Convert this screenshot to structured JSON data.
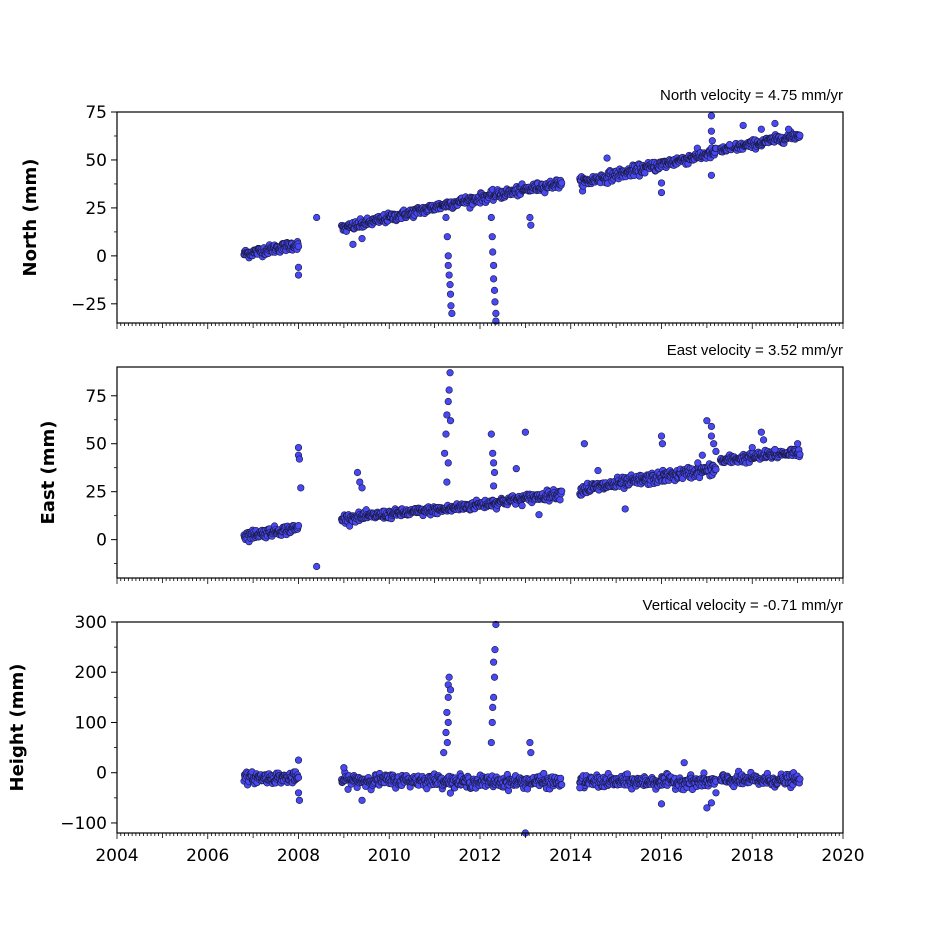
{
  "chart_data": [
    {
      "type": "scatter",
      "title": "North velocity = 4.75 mm/yr",
      "ylabel": "North (mm)",
      "xlim": [
        2004,
        2020
      ],
      "ylim": [
        -35,
        75
      ],
      "yticks": [
        -25,
        0,
        25,
        50,
        75
      ],
      "ytick_labels": [
        "−25",
        "0",
        "25",
        "50",
        "75"
      ],
      "x_minor_per_year": 12,
      "marker_color": "#4848f5",
      "marker_edge": "#1a1a40",
      "segments": [
        {
          "x0": 2006.8,
          "x1": 2008.0,
          "y0": 1,
          "y1": 6,
          "noise": 2.0,
          "n": 110
        },
        {
          "x0": 2008.95,
          "x1": 2011.3,
          "y0": 14,
          "y1": 27,
          "noise": 2.0,
          "n": 200
        },
        {
          "x0": 2011.3,
          "x1": 2013.8,
          "y0": 27,
          "y1": 38,
          "noise": 2.0,
          "n": 210
        },
        {
          "x0": 2014.2,
          "x1": 2017.2,
          "y0": 38,
          "y1": 54,
          "noise": 2.2,
          "n": 250
        },
        {
          "x0": 2017.3,
          "x1": 2019.05,
          "y0": 55,
          "y1": 63,
          "noise": 1.8,
          "n": 150
        }
      ],
      "outliers": [
        [
          2008.0,
          -10
        ],
        [
          2008.0,
          -6
        ],
        [
          2008.4,
          20
        ],
        [
          2009.2,
          6
        ],
        [
          2009.4,
          9
        ],
        [
          2011.25,
          20
        ],
        [
          2011.28,
          10
        ],
        [
          2011.3,
          0
        ],
        [
          2011.3,
          -5
        ],
        [
          2011.32,
          -10
        ],
        [
          2011.34,
          -15
        ],
        [
          2011.35,
          -20
        ],
        [
          2011.36,
          -26
        ],
        [
          2011.38,
          -30
        ],
        [
          2012.25,
          20
        ],
        [
          2012.27,
          10
        ],
        [
          2012.28,
          2
        ],
        [
          2012.3,
          -5
        ],
        [
          2012.3,
          -12
        ],
        [
          2012.32,
          -18
        ],
        [
          2012.33,
          -24
        ],
        [
          2012.35,
          -30
        ],
        [
          2012.35,
          -34
        ],
        [
          2013.1,
          20
        ],
        [
          2013.12,
          16
        ],
        [
          2014.8,
          51
        ],
        [
          2016.0,
          38
        ],
        [
          2016.0,
          33
        ],
        [
          2017.1,
          73
        ],
        [
          2017.1,
          65
        ],
        [
          2017.12,
          60
        ],
        [
          2017.1,
          42
        ],
        [
          2017.5,
          58
        ],
        [
          2017.8,
          68
        ],
        [
          2018.2,
          66
        ],
        [
          2018.5,
          69
        ],
        [
          2018.8,
          66
        ]
      ]
    },
    {
      "type": "scatter",
      "title": "East velocity = 3.52 mm/yr",
      "ylabel": "East (mm)",
      "xlim": [
        2004,
        2020
      ],
      "ylim": [
        -20,
        90
      ],
      "yticks": [
        0,
        25,
        50,
        75
      ],
      "ytick_labels": [
        "0",
        "25",
        "50",
        "75"
      ],
      "x_minor_per_year": 12,
      "marker_color": "#4848f5",
      "marker_edge": "#1a1a40",
      "segments": [
        {
          "x0": 2006.8,
          "x1": 2008.0,
          "y0": 2,
          "y1": 6,
          "noise": 2.0,
          "n": 110
        },
        {
          "x0": 2008.95,
          "x1": 2011.3,
          "y0": 11,
          "y1": 16,
          "noise": 1.8,
          "n": 200
        },
        {
          "x0": 2011.3,
          "x1": 2013.8,
          "y0": 16,
          "y1": 24,
          "noise": 2.0,
          "n": 210
        },
        {
          "x0": 2014.2,
          "x1": 2017.2,
          "y0": 26,
          "y1": 37,
          "noise": 2.5,
          "n": 250
        },
        {
          "x0": 2017.3,
          "x1": 2019.05,
          "y0": 41,
          "y1": 46,
          "noise": 2.0,
          "n": 150
        }
      ],
      "outliers": [
        [
          2008.0,
          48
        ],
        [
          2008.0,
          44
        ],
        [
          2008.02,
          42
        ],
        [
          2008.05,
          27
        ],
        [
          2008.4,
          -14
        ],
        [
          2009.3,
          35
        ],
        [
          2009.35,
          30
        ],
        [
          2009.4,
          27
        ],
        [
          2011.22,
          45
        ],
        [
          2011.25,
          55
        ],
        [
          2011.27,
          65
        ],
        [
          2011.3,
          72
        ],
        [
          2011.32,
          78
        ],
        [
          2011.34,
          87
        ],
        [
          2011.35,
          62
        ],
        [
          2011.3,
          40
        ],
        [
          2011.27,
          30
        ],
        [
          2012.25,
          55
        ],
        [
          2012.28,
          45
        ],
        [
          2012.3,
          40
        ],
        [
          2012.32,
          35
        ],
        [
          2012.3,
          28
        ],
        [
          2012.8,
          37
        ],
        [
          2013.0,
          56
        ],
        [
          2013.3,
          13
        ],
        [
          2014.3,
          50
        ],
        [
          2014.6,
          36
        ],
        [
          2015.2,
          16
        ],
        [
          2016.0,
          54
        ],
        [
          2016.02,
          50
        ],
        [
          2016.8,
          40
        ],
        [
          2016.9,
          44
        ],
        [
          2017.0,
          62
        ],
        [
          2017.1,
          59
        ],
        [
          2017.1,
          54
        ],
        [
          2017.15,
          50
        ],
        [
          2017.2,
          46
        ],
        [
          2018.0,
          48
        ],
        [
          2018.2,
          56
        ],
        [
          2018.25,
          52
        ],
        [
          2018.5,
          47
        ],
        [
          2019.0,
          50
        ]
      ]
    },
    {
      "type": "scatter",
      "title": "Vertical velocity = -0.71 mm/yr",
      "ylabel": "Height (mm)",
      "xlabel": "",
      "xlim": [
        2004,
        2020
      ],
      "ylim": [
        -120,
        300
      ],
      "yticks": [
        -100,
        0,
        100,
        200,
        300
      ],
      "ytick_labels": [
        "−100",
        "0",
        "100",
        "200",
        "300"
      ],
      "xticks": [
        2004,
        2006,
        2008,
        2010,
        2012,
        2014,
        2016,
        2018,
        2020
      ],
      "xtick_labels": [
        "2004",
        "2006",
        "2008",
        "2010",
        "2012",
        "2014",
        "2016",
        "2018",
        "2020"
      ],
      "x_minor_per_year": 12,
      "marker_color": "#4848f5",
      "marker_edge": "#1a1a40",
      "segments": [
        {
          "x0": 2006.8,
          "x1": 2008.0,
          "y0": -10,
          "y1": -10,
          "noise": 9,
          "n": 110
        },
        {
          "x0": 2008.95,
          "x1": 2011.3,
          "y0": -15,
          "y1": -15,
          "noise": 10,
          "n": 200
        },
        {
          "x0": 2011.3,
          "x1": 2013.8,
          "y0": -18,
          "y1": -18,
          "noise": 10,
          "n": 210
        },
        {
          "x0": 2014.2,
          "x1": 2017.2,
          "y0": -18,
          "y1": -18,
          "noise": 10,
          "n": 250
        },
        {
          "x0": 2017.3,
          "x1": 2019.05,
          "y0": -15,
          "y1": -15,
          "noise": 10,
          "n": 150
        }
      ],
      "outliers": [
        [
          2008.0,
          25
        ],
        [
          2008.0,
          -40
        ],
        [
          2008.02,
          -55
        ],
        [
          2009.4,
          -55
        ],
        [
          2009.0,
          10
        ],
        [
          2011.2,
          40
        ],
        [
          2011.25,
          80
        ],
        [
          2011.27,
          120
        ],
        [
          2011.3,
          150
        ],
        [
          2011.3,
          175
        ],
        [
          2011.32,
          190
        ],
        [
          2011.35,
          165
        ],
        [
          2011.3,
          100
        ],
        [
          2011.28,
          60
        ],
        [
          2012.25,
          60
        ],
        [
          2012.27,
          100
        ],
        [
          2012.3,
          150
        ],
        [
          2012.32,
          190
        ],
        [
          2012.3,
          220
        ],
        [
          2012.33,
          245
        ],
        [
          2012.35,
          295
        ],
        [
          2012.28,
          130
        ],
        [
          2013.0,
          -120
        ],
        [
          2013.1,
          60
        ],
        [
          2013.12,
          40
        ],
        [
          2014.2,
          -30
        ],
        [
          2016.0,
          -62
        ],
        [
          2016.5,
          20
        ],
        [
          2017.0,
          -70
        ],
        [
          2017.1,
          -60
        ],
        [
          2017.2,
          -40
        ]
      ]
    }
  ]
}
